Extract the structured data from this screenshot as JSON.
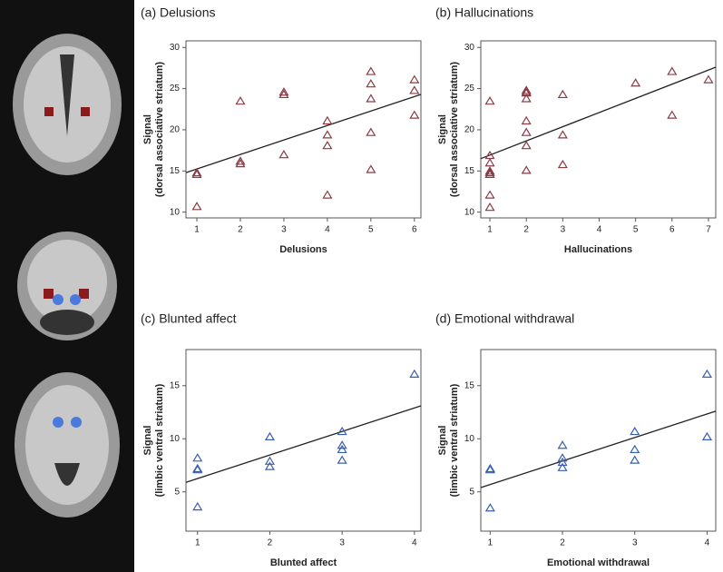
{
  "chart_data": [
    {
      "type": "scatter",
      "title": "(a) Delusions",
      "xlabel": "Delusions",
      "ylabel": [
        "Signal",
        "(dorsal associative striatum)"
      ],
      "color": "#8b3a44",
      "x": [
        1,
        1,
        1,
        2,
        2,
        2,
        3,
        3,
        3,
        4,
        4,
        4,
        4,
        5,
        5,
        5,
        5,
        5,
        6,
        6,
        6
      ],
      "y": [
        14.8,
        14.6,
        10.7,
        23.5,
        16.2,
        15.9,
        24.6,
        24.3,
        17.0,
        21.1,
        19.4,
        18.1,
        12.1,
        27.1,
        25.6,
        23.8,
        19.7,
        15.2,
        26.1,
        24.8,
        21.8
      ],
      "fit": {
        "x": [
          0.75,
          6.15
        ],
        "y": [
          14.8,
          24.3
        ]
      },
      "xlim": [
        0.75,
        6.15
      ],
      "ylim": [
        9.3,
        30.8
      ],
      "xticks": [
        1,
        2,
        3,
        4,
        5,
        6
      ],
      "yticks": [
        10,
        15,
        20,
        25,
        30
      ]
    },
    {
      "type": "scatter",
      "title": "(b) Hallucinations",
      "xlabel": "Hallucinations",
      "ylabel": [
        "Signal",
        "(dorsal associative striatum)"
      ],
      "color": "#8b3a44",
      "x": [
        1,
        1,
        1,
        1,
        1,
        1,
        1,
        1,
        2,
        2,
        2,
        2,
        2,
        2,
        2,
        2,
        3,
        3,
        3,
        5,
        6,
        6,
        7
      ],
      "y": [
        23.5,
        16.9,
        16.0,
        15.0,
        14.8,
        14.6,
        12.1,
        10.6,
        24.8,
        24.6,
        24.5,
        23.8,
        21.1,
        19.7,
        18.1,
        15.1,
        24.3,
        19.4,
        15.8,
        25.7,
        27.1,
        21.8,
        26.1
      ],
      "fit": {
        "x": [
          0.75,
          7.2
        ],
        "y": [
          16.5,
          27.6
        ]
      },
      "xlim": [
        0.75,
        7.2
      ],
      "ylim": [
        9.3,
        30.8
      ],
      "xticks": [
        1,
        2,
        3,
        4,
        5,
        6,
        7
      ],
      "yticks": [
        10,
        15,
        20,
        25,
        30
      ]
    },
    {
      "type": "scatter",
      "title": "(c) Blunted affect",
      "xlabel": "Blunted affect",
      "ylabel": [
        "Signal",
        "(limbic ventral striatum)"
      ],
      "color": "#3a5fb0",
      "x": [
        1,
        1,
        1,
        1,
        2,
        2,
        2,
        3,
        3,
        3,
        3,
        4
      ],
      "y": [
        8.2,
        7.2,
        7.1,
        3.6,
        10.2,
        7.9,
        7.4,
        10.7,
        9.4,
        9.0,
        8.0,
        16.1
      ],
      "fit": {
        "x": [
          0.84,
          4.09
        ],
        "y": [
          5.9,
          13.1
        ]
      },
      "xlim": [
        0.84,
        4.09
      ],
      "ylim": [
        1.3,
        18.4
      ],
      "xticks": [
        1,
        2,
        3,
        4
      ],
      "yticks": [
        5,
        10,
        15
      ]
    },
    {
      "type": "scatter",
      "title": "(d) Emotional withdrawal",
      "xlabel": "Emotional withdrawal",
      "ylabel": [
        "Signal",
        "(limbic ventral striatum)"
      ],
      "color": "#3a5fb0",
      "x": [
        1,
        1,
        1,
        2,
        2,
        2,
        2,
        3,
        3,
        3,
        4,
        4
      ],
      "y": [
        7.2,
        7.1,
        3.5,
        9.4,
        8.2,
        7.8,
        7.3,
        10.7,
        9.0,
        8.0,
        16.1,
        10.2
      ],
      "fit": {
        "x": [
          0.87,
          4.12
        ],
        "y": [
          5.4,
          12.6
        ]
      },
      "xlim": [
        0.87,
        4.12
      ],
      "ylim": [
        1.3,
        18.4
      ],
      "xticks": [
        1,
        2,
        3,
        4
      ],
      "yticks": [
        5,
        10,
        15
      ]
    }
  ]
}
